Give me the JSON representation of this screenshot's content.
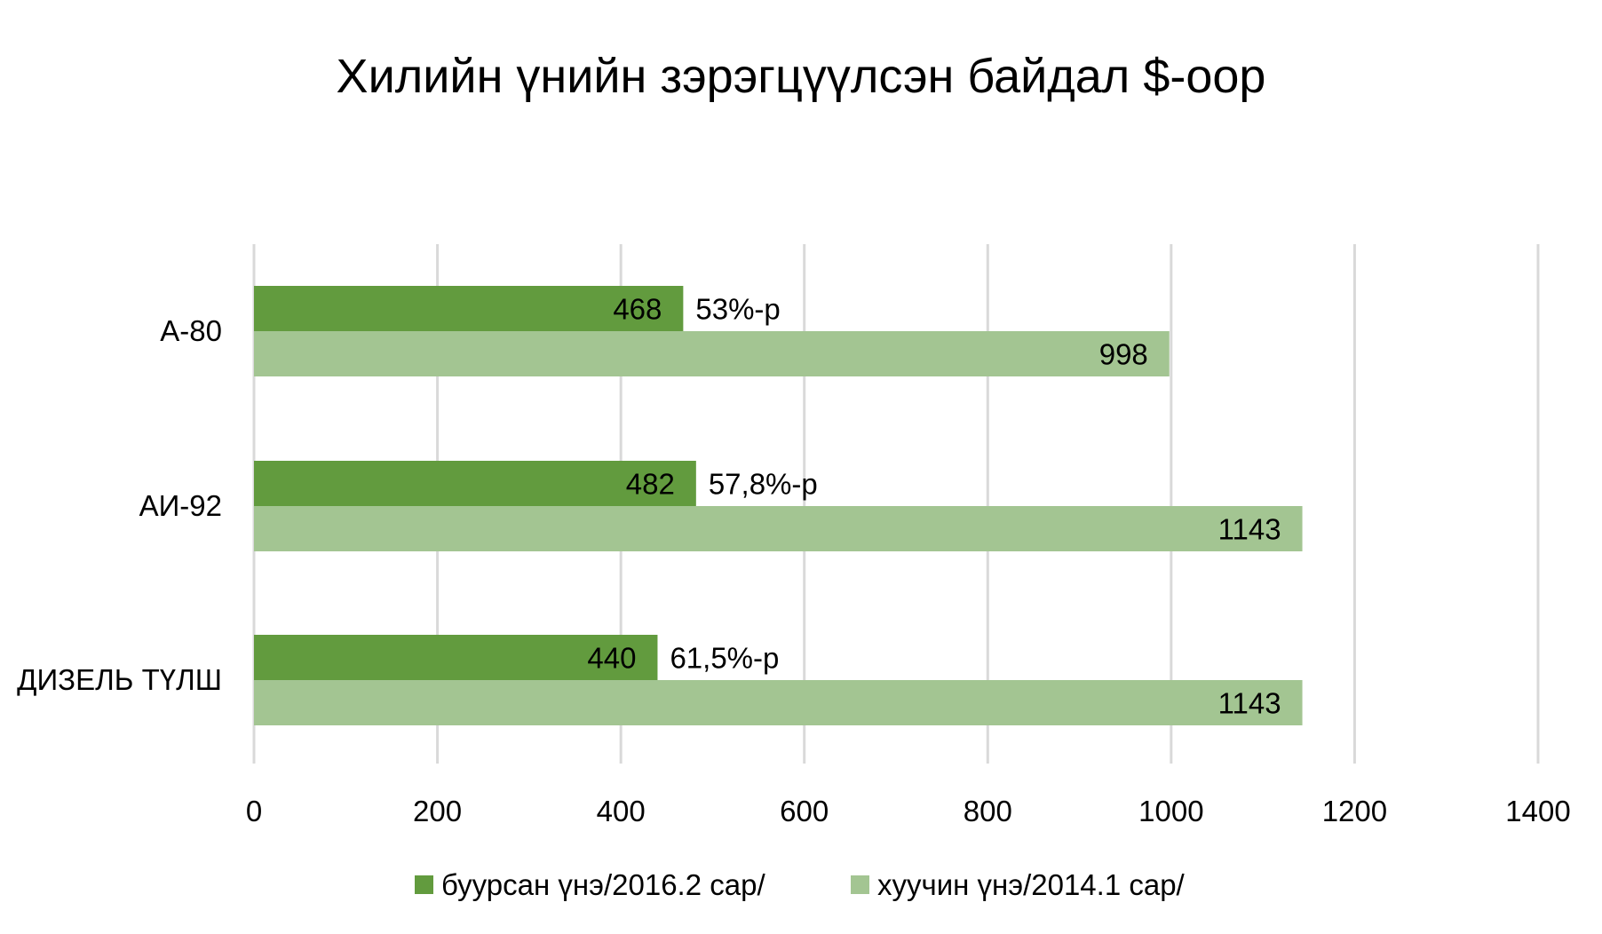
{
  "chart_data": {
    "type": "bar",
    "orientation": "horizontal",
    "title": "Хилийн үнийн зэрэгцүүлсэн байдал $-оор",
    "xlabel": "",
    "ylabel": "",
    "categories": [
      "А-80",
      "АИ-92",
      "ДИЗЕЛЬ ТҮЛШ"
    ],
    "series": [
      {
        "name": "буурсан үнэ/2016.2 сар/",
        "color": "#629b3e",
        "values": [
          468,
          482,
          440
        ],
        "labels": [
          "468",
          "482",
          "440"
        ]
      },
      {
        "name": "хуучин үнэ/2014.1 сар/",
        "color": "#a3c592",
        "values": [
          998,
          1143,
          1143
        ],
        "labels": [
          "998",
          "1143",
          "1143"
        ]
      }
    ],
    "annotations": [
      "53%-р",
      "57,8%-р",
      "61,5%-р"
    ],
    "xlim": [
      0,
      1400
    ],
    "xticks": [
      0,
      200,
      400,
      600,
      800,
      1000,
      1200,
      1400
    ],
    "xtick_labels": [
      "0",
      "200",
      "400",
      "600",
      "800",
      "1000",
      "1200",
      "1400"
    ],
    "grid": true,
    "legend_position": "bottom"
  }
}
